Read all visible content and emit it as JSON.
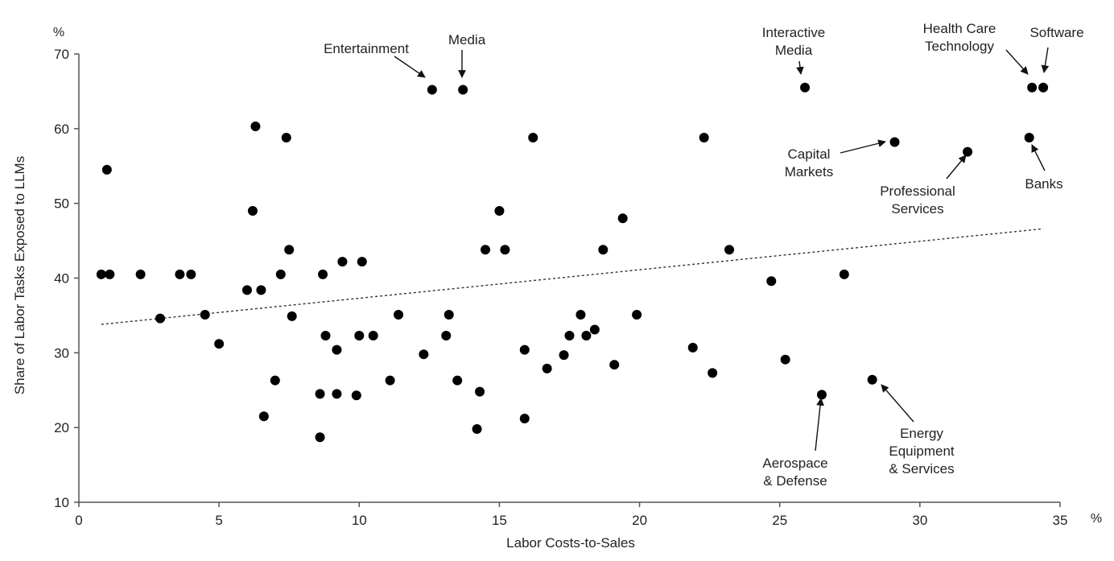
{
  "chart_data": {
    "type": "scatter",
    "title": "",
    "xlabel": "Labor Costs-to-Sales",
    "ylabel": "Share of Labor Tasks Exposed to LLMs",
    "x_unit": "%",
    "y_unit": "%",
    "xlim": [
      0,
      35
    ],
    "ylim": [
      10,
      70
    ],
    "xticks": [
      0,
      5,
      10,
      15,
      20,
      25,
      30,
      35
    ],
    "yticks": [
      10,
      20,
      30,
      40,
      50,
      60,
      70
    ],
    "grid": false,
    "legend": null,
    "colors": {
      "points": "#000000",
      "axis": "#555555",
      "text": "#222222"
    },
    "trendline": {
      "style": "dotted",
      "x": [
        0.8,
        34.4
      ],
      "y": [
        33.8,
        46.6
      ]
    },
    "points": [
      {
        "x": 0.8,
        "y": 40.5
      },
      {
        "x": 1.0,
        "y": 54.5
      },
      {
        "x": 1.1,
        "y": 40.5
      },
      {
        "x": 2.2,
        "y": 40.5
      },
      {
        "x": 2.9,
        "y": 34.6
      },
      {
        "x": 3.6,
        "y": 40.5
      },
      {
        "x": 4.0,
        "y": 40.5
      },
      {
        "x": 4.5,
        "y": 35.1
      },
      {
        "x": 5.0,
        "y": 31.2
      },
      {
        "x": 6.0,
        "y": 38.4
      },
      {
        "x": 6.2,
        "y": 49.0
      },
      {
        "x": 6.3,
        "y": 60.3
      },
      {
        "x": 6.5,
        "y": 38.4
      },
      {
        "x": 6.6,
        "y": 21.5
      },
      {
        "x": 7.0,
        "y": 26.3
      },
      {
        "x": 7.2,
        "y": 40.5
      },
      {
        "x": 7.4,
        "y": 58.8
      },
      {
        "x": 7.5,
        "y": 43.8
      },
      {
        "x": 7.6,
        "y": 34.9
      },
      {
        "x": 8.6,
        "y": 24.5
      },
      {
        "x": 8.6,
        "y": 18.7
      },
      {
        "x": 8.7,
        "y": 40.5
      },
      {
        "x": 8.8,
        "y": 32.3
      },
      {
        "x": 9.2,
        "y": 30.4
      },
      {
        "x": 9.2,
        "y": 24.5
      },
      {
        "x": 9.4,
        "y": 42.2
      },
      {
        "x": 9.9,
        "y": 24.3
      },
      {
        "x": 10.0,
        "y": 32.3
      },
      {
        "x": 10.1,
        "y": 42.2
      },
      {
        "x": 10.5,
        "y": 32.3
      },
      {
        "x": 11.1,
        "y": 26.3
      },
      {
        "x": 11.4,
        "y": 35.1
      },
      {
        "x": 12.3,
        "y": 29.8
      },
      {
        "x": 12.6,
        "y": 65.2
      },
      {
        "x": 13.1,
        "y": 32.3
      },
      {
        "x": 13.2,
        "y": 35.1
      },
      {
        "x": 13.5,
        "y": 26.3
      },
      {
        "x": 13.7,
        "y": 65.2
      },
      {
        "x": 14.2,
        "y": 19.8
      },
      {
        "x": 14.3,
        "y": 24.8
      },
      {
        "x": 14.5,
        "y": 43.8
      },
      {
        "x": 15.0,
        "y": 49.0
      },
      {
        "x": 15.2,
        "y": 43.8
      },
      {
        "x": 15.9,
        "y": 30.4
      },
      {
        "x": 15.9,
        "y": 21.2
      },
      {
        "x": 16.2,
        "y": 58.8
      },
      {
        "x": 16.7,
        "y": 27.9
      },
      {
        "x": 17.3,
        "y": 29.7
      },
      {
        "x": 17.5,
        "y": 32.3
      },
      {
        "x": 17.9,
        "y": 35.1
      },
      {
        "x": 18.1,
        "y": 32.3
      },
      {
        "x": 18.4,
        "y": 33.1
      },
      {
        "x": 18.7,
        "y": 43.8
      },
      {
        "x": 19.1,
        "y": 28.4
      },
      {
        "x": 19.4,
        "y": 48.0
      },
      {
        "x": 19.9,
        "y": 35.1
      },
      {
        "x": 21.9,
        "y": 30.7
      },
      {
        "x": 22.3,
        "y": 58.8
      },
      {
        "x": 22.6,
        "y": 27.3
      },
      {
        "x": 23.2,
        "y": 43.8
      },
      {
        "x": 24.7,
        "y": 39.6
      },
      {
        "x": 25.2,
        "y": 29.1
      },
      {
        "x": 25.9,
        "y": 65.5
      },
      {
        "x": 26.5,
        "y": 24.4
      },
      {
        "x": 27.3,
        "y": 40.5
      },
      {
        "x": 28.3,
        "y": 26.4
      },
      {
        "x": 29.1,
        "y": 58.2
      },
      {
        "x": 31.7,
        "y": 56.9
      },
      {
        "x": 33.9,
        "y": 58.8
      },
      {
        "x": 34.0,
        "y": 65.5
      },
      {
        "x": 34.4,
        "y": 65.5
      }
    ],
    "annotations": [
      {
        "lines": [
          "Entertainment"
        ],
        "target": [
          12.6,
          65.2
        ]
      },
      {
        "lines": [
          "Media"
        ],
        "target": [
          13.7,
          65.2
        ]
      },
      {
        "lines": [
          "Interactive",
          "Media"
        ],
        "target": [
          25.9,
          65.5
        ]
      },
      {
        "lines": [
          "Health Care",
          "Technology"
        ],
        "target": [
          34.0,
          65.5
        ]
      },
      {
        "lines": [
          "Software"
        ],
        "target": [
          34.4,
          65.5
        ]
      },
      {
        "lines": [
          "Capital",
          "Markets"
        ],
        "target": [
          29.1,
          58.2
        ]
      },
      {
        "lines": [
          "Professional",
          "Services"
        ],
        "target": [
          31.7,
          56.9
        ]
      },
      {
        "lines": [
          "Banks"
        ],
        "target": [
          33.9,
          58.8
        ]
      },
      {
        "lines": [
          "Aerospace",
          "& Defense"
        ],
        "target": [
          26.5,
          24.4
        ]
      },
      {
        "lines": [
          "Energy",
          "Equipment",
          "& Services"
        ],
        "target": [
          28.3,
          26.4
        ]
      }
    ]
  }
}
